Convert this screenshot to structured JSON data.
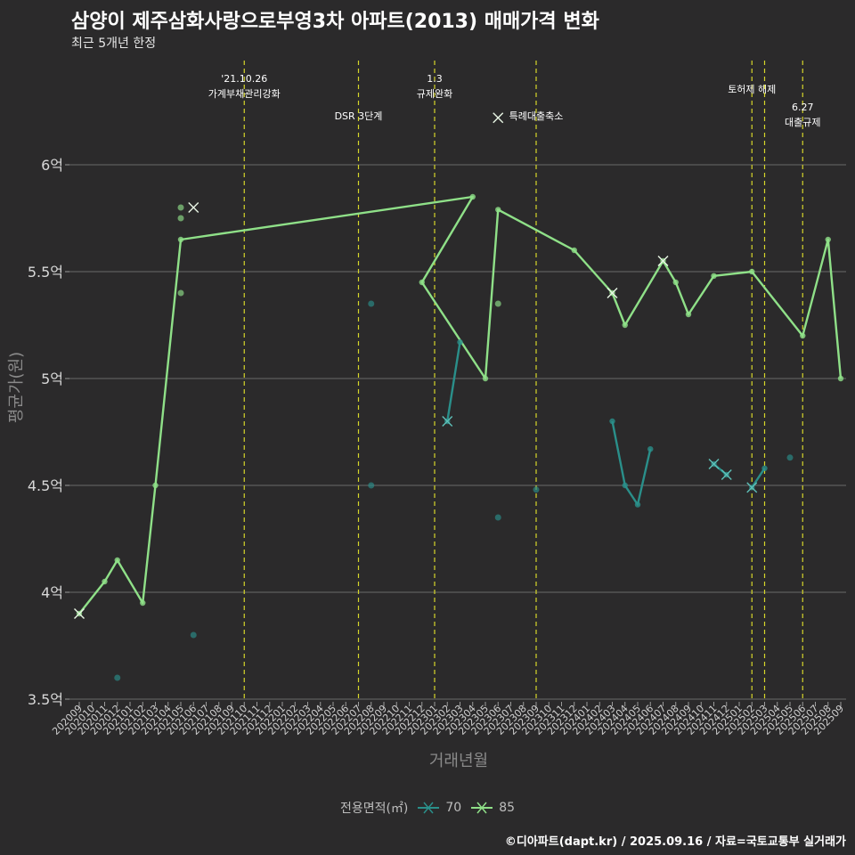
{
  "chart_data": {
    "type": "line",
    "title": "삼양이 제주삼화사랑으로부영3차 아파트(2013) 매매가격 변화",
    "subtitle": "최근 5개년 한정",
    "xlabel": "거래년월",
    "ylabel": "평균가(원)",
    "caption": "©디아파트(dapt.kr) / 2025.09.16 / 자료=국토교통부 실거래가",
    "legend_title": "전용면적(㎡)",
    "ylim": [
      3.5,
      6.25
    ],
    "yticks": [
      3.5,
      4,
      4.5,
      5,
      5.5,
      6
    ],
    "ytick_labels": [
      "3.5억",
      "4억",
      "4.5억",
      "5억",
      "5.5억",
      "6억"
    ],
    "categories": [
      "202009",
      "202010",
      "202011",
      "202012",
      "202101",
      "202102",
      "202103",
      "202104",
      "202105",
      "202106",
      "202107",
      "202108",
      "202109",
      "202110",
      "202111",
      "202112",
      "202201",
      "202202",
      "202203",
      "202204",
      "202205",
      "202206",
      "202207",
      "202208",
      "202209",
      "202210",
      "202211",
      "202212",
      "202301",
      "202302",
      "202303",
      "202304",
      "202305",
      "202306",
      "202307",
      "202308",
      "202309",
      "202310",
      "202311",
      "202312",
      "202401",
      "202402",
      "202403",
      "202404",
      "202405",
      "202406",
      "202407",
      "202408",
      "202409",
      "202410",
      "202411",
      "202412",
      "202501",
      "202502",
      "202503",
      "202504",
      "202505",
      "202506",
      "202507",
      "202508",
      "202509"
    ],
    "events": [
      {
        "x": "202110",
        "label": "'21.10.26\n가계부채관리강화",
        "row": 1
      },
      {
        "x": "202207",
        "label": "DSR 3단계",
        "row": 2
      },
      {
        "x": "202301",
        "label": "1.3\n규제완화",
        "row": 1
      },
      {
        "x": "202309",
        "label": "특례대출축소",
        "row": 2
      },
      {
        "x": "202502",
        "label": "토허제 해제",
        "row": 1
      },
      {
        "x": "202503",
        "label": "",
        "row": 1
      },
      {
        "x": "202506",
        "label": "6.27\n대출규제",
        "row": 3
      }
    ],
    "series": [
      {
        "name": "70",
        "color": "#2a8f8a",
        "line": [
          [
            [
              "202302",
              4.8
            ],
            [
              "202303",
              5.17
            ]
          ],
          [
            [
              "202403",
              4.8
            ],
            [
              "202404",
              4.5
            ],
            [
              "202405",
              4.41
            ],
            [
              "202406",
              4.67
            ]
          ],
          [
            [
              "202411",
              4.6
            ],
            [
              "202412",
              4.55
            ]
          ],
          [
            [
              "202502",
              4.49
            ],
            [
              "202503",
              4.58
            ]
          ]
        ],
        "points": [
          [
            "202012",
            3.6
          ],
          [
            "202106",
            3.8
          ],
          [
            "202208",
            5.35
          ],
          [
            "202208",
            4.5
          ],
          [
            "202309",
            4.48
          ],
          [
            "202306",
            4.35
          ],
          [
            "202505",
            4.63
          ]
        ],
        "cancelled": [
          [
            "202302",
            4.8
          ],
          [
            "202411",
            4.6
          ],
          [
            "202412",
            4.55
          ],
          [
            "202502",
            4.49
          ]
        ]
      },
      {
        "name": "85",
        "color": "#8fe088",
        "line": [
          [
            [
              "202009",
              3.9
            ],
            [
              "202011",
              4.05
            ],
            [
              "202012",
              4.15
            ],
            [
              "202102",
              3.95
            ],
            [
              "202103",
              4.5
            ],
            [
              "202105",
              5.65
            ],
            [
              "202304",
              5.85
            ],
            [
              "202212",
              5.45
            ],
            [
              "202305",
              5.0
            ],
            [
              "202306",
              5.79
            ],
            [
              "202312",
              5.6
            ],
            [
              "202403",
              5.4
            ],
            [
              "202404",
              5.25
            ],
            [
              "202407",
              5.55
            ],
            [
              "202408",
              5.45
            ],
            [
              "202409",
              5.3
            ],
            [
              "202411",
              5.48
            ],
            [
              "202502",
              5.5
            ],
            [
              "202506",
              5.2
            ],
            [
              "202508",
              5.65
            ],
            [
              "202509",
              5.0
            ]
          ]
        ],
        "points": [
          [
            "202105",
            5.8
          ],
          [
            "202105",
            5.75
          ],
          [
            "202105",
            5.4
          ],
          [
            "202306",
            5.35
          ]
        ],
        "cancelled": [
          [
            "202009",
            3.9
          ],
          [
            "202106",
            5.8
          ],
          [
            "202403",
            5.4
          ],
          [
            "202407",
            5.55
          ],
          [
            "202306",
            6.22
          ]
        ]
      }
    ]
  }
}
